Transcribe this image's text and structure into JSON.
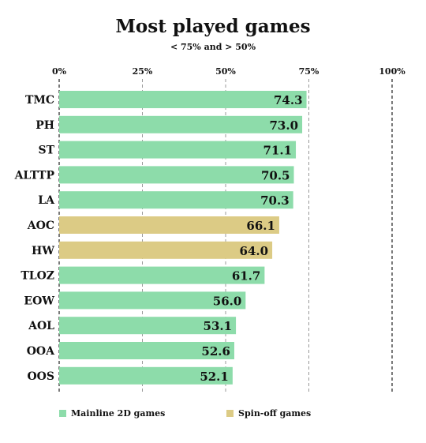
{
  "chart_data": {
    "type": "bar",
    "orientation": "horizontal",
    "title": "Most played games",
    "subtitle": "< 75% and > 50%",
    "xlim": [
      0,
      100
    ],
    "x_ticks": [
      {
        "value": 0,
        "label": "0%"
      },
      {
        "value": 25,
        "label": "25%"
      },
      {
        "value": 50,
        "label": "50%"
      },
      {
        "value": 75,
        "label": "75%"
      },
      {
        "value": 100,
        "label": "100%"
      }
    ],
    "grid": "vertical dashed",
    "series": [
      {
        "name": "Mainline 2D games",
        "color": "#8ddcaa"
      },
      {
        "name": "Spin-off games",
        "color": "#dccb85"
      }
    ],
    "categories": [
      "TMC",
      "PH",
      "ST",
      "ALTTP",
      "LA",
      "AOC",
      "HW",
      "TLOZ",
      "EOW",
      "AOL",
      "OOA",
      "OOS"
    ],
    "values": [
      74.3,
      73.0,
      71.1,
      70.5,
      70.3,
      66.1,
      64.0,
      61.7,
      56.0,
      53.1,
      52.6,
      52.1
    ],
    "value_labels": [
      "74.3",
      "73.0",
      "71.1",
      "70.5",
      "70.3",
      "66.1",
      "64.0",
      "61.7",
      "56.0",
      "53.1",
      "52.6",
      "52.1"
    ],
    "bar_series": [
      0,
      0,
      0,
      0,
      0,
      1,
      1,
      0,
      0,
      0,
      0,
      0
    ],
    "legend_position": "bottom"
  }
}
